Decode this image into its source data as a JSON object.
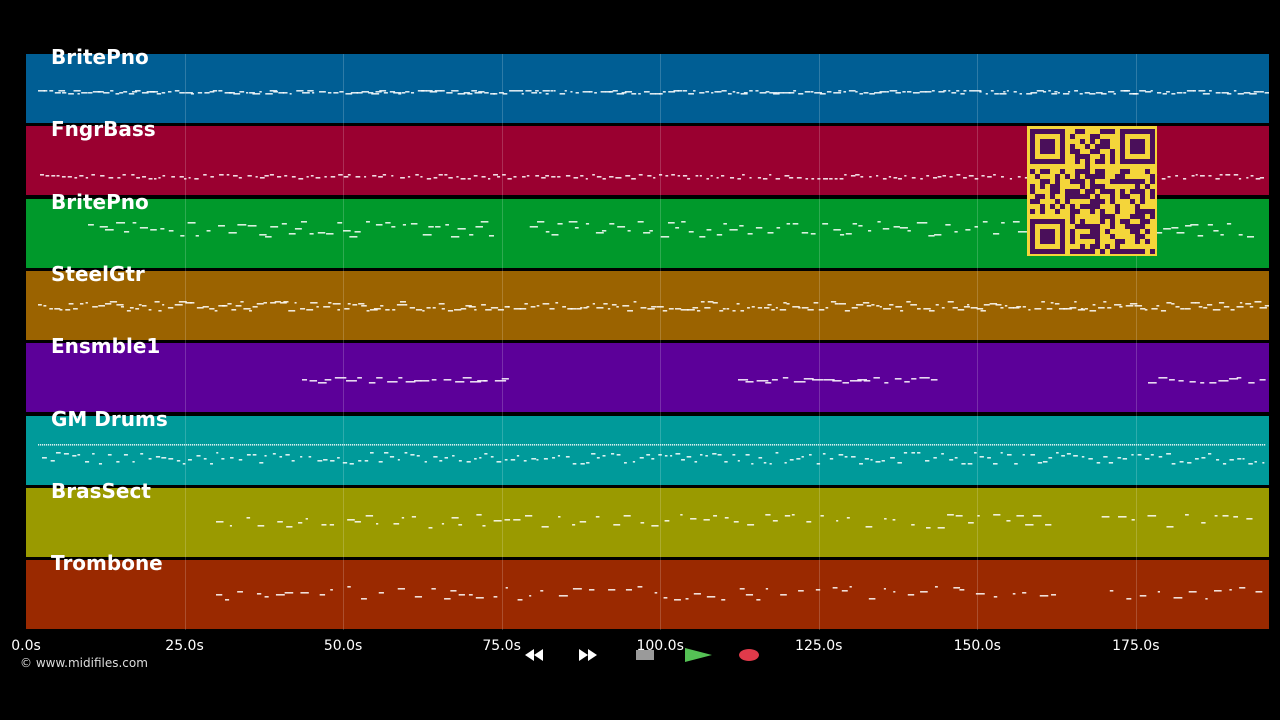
{
  "tracks": [
    {
      "name": "BritePno",
      "color": "#005e94",
      "style": "dense"
    },
    {
      "name": "FngrBass",
      "color": "#9a0030",
      "style": "bass"
    },
    {
      "name": "BritePno",
      "color": "#00992b",
      "style": "chords"
    },
    {
      "name": "SteelGtr",
      "color": "#9b6300",
      "style": "thick"
    },
    {
      "name": "Ensmble1",
      "color": "#5c0099",
      "style": "sparse"
    },
    {
      "name": "GM Drums",
      "color": "#009a9a",
      "style": "drums"
    },
    {
      "name": "BrasSect",
      "color": "#9a9a00",
      "style": "scatter"
    },
    {
      "name": "Trombone",
      "color": "#9a2900",
      "style": "scatter"
    }
  ],
  "timeline": {
    "ticks": [
      "0.0s",
      "25.0s",
      "50.0s",
      "75.0s",
      "100.0s",
      "125.0s",
      "150.0s",
      "175.0s"
    ],
    "tick_values": [
      0,
      25,
      50,
      75,
      100,
      125,
      150,
      175
    ],
    "max_seconds": 196
  },
  "copyright": "© www.midifiles.com",
  "transport": {
    "buttons": [
      {
        "name": "rewind-button",
        "icon": "rewind-icon",
        "bg": "#1a1a1a"
      },
      {
        "name": "fast-forward-button",
        "icon": "fast-forward-icon",
        "bg": "#1a1a1a"
      },
      {
        "name": "stop-button",
        "icon": "stop-icon",
        "bg": "#303030"
      },
      {
        "name": "play-button",
        "icon": "play-icon",
        "bg": "#1c4f1c"
      },
      {
        "name": "record-button",
        "icon": "record-icon",
        "bg": "#4a1414"
      }
    ]
  },
  "qr_code": {
    "icon": "qr-code-icon",
    "fg": "#4a0f5a",
    "bg": "#f4d53a"
  }
}
